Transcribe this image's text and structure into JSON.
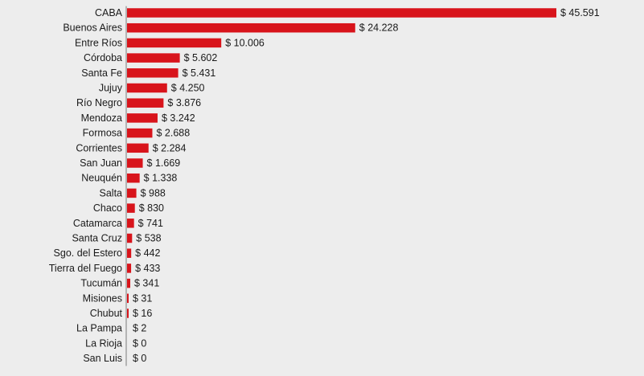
{
  "chart_data": {
    "type": "bar",
    "orientation": "horizontal",
    "bar_color": "#d8141b",
    "axis_color": "#7a7a7a",
    "categories": [
      "CABA",
      "Buenos Aires",
      "Entre Ríos",
      "Córdoba",
      "Santa Fe",
      "Jujuy",
      "Río Negro",
      "Mendoza",
      "Formosa",
      "Corrientes",
      "San Juan",
      "Neuquén",
      "Salta",
      "Chaco",
      "Catamarca",
      "Santa Cruz",
      "Sgo. del Estero",
      "Tierra del Fuego",
      "Tucumán",
      "Misiones",
      "Chubut",
      "La Pampa",
      "La Rioja",
      "San Luis"
    ],
    "values": [
      45591,
      24228,
      10006,
      5602,
      5431,
      4250,
      3876,
      3242,
      2688,
      2284,
      1669,
      1338,
      988,
      830,
      741,
      538,
      442,
      433,
      341,
      31,
      16,
      2,
      0,
      0
    ],
    "value_labels": [
      "$ 45.591",
      "$ 24.228",
      "$ 10.006",
      "$ 5.602",
      "$ 5.431",
      "$ 4.250",
      "$ 3.876",
      "$ 3.242",
      "$ 2.688",
      "$ 2.284",
      "$ 1.669",
      "$ 1.338",
      "$ 988",
      "$ 830",
      "$ 741",
      "$ 538",
      "$ 442",
      "$ 433",
      "$ 341",
      "$ 31",
      "$ 16",
      "$ 2",
      "$ 0",
      "$ 0"
    ],
    "title": "",
    "xlabel": "",
    "ylabel": "",
    "xlim": [
      0,
      45591
    ],
    "grid": false,
    "legend": "none"
  }
}
